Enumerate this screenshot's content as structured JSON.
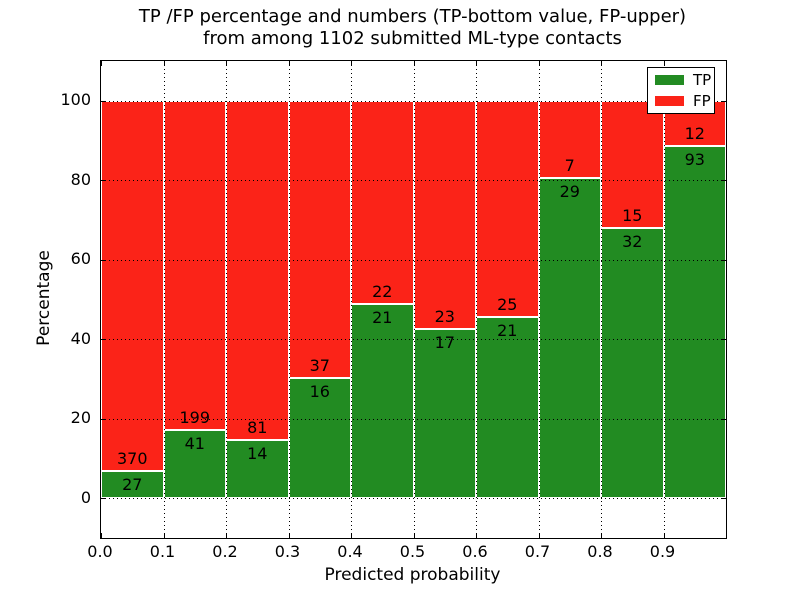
{
  "chart_data": {
    "type": "bar",
    "stacked": true,
    "unit": "percent",
    "title": "TP /FP percentage and numbers (TP-bottom value, FP-upper)\nfrom among 1102 submitted ML-type contacts",
    "title_line1": "TP /FP percentage and numbers (TP-bottom value, FP-upper)",
    "title_line2": "from among 1102 submitted ML-type contacts",
    "xlabel": "Predicted probability",
    "ylabel": "Percentage",
    "total_contacts": 1102,
    "categories": [
      "0.0-0.1",
      "0.1-0.2",
      "0.2-0.3",
      "0.3-0.4",
      "0.4-0.5",
      "0.5-0.6",
      "0.6-0.7",
      "0.7-0.8",
      "0.8-0.9",
      "0.9-1.0"
    ],
    "bin_edges": [
      0.0,
      0.1,
      0.2,
      0.3,
      0.4,
      0.5,
      0.6,
      0.7,
      0.8,
      0.9,
      1.0
    ],
    "series": [
      {
        "name": "TP",
        "color": "#228b22",
        "counts": [
          27,
          41,
          14,
          16,
          21,
          17,
          21,
          29,
          32,
          93
        ]
      },
      {
        "name": "FP",
        "color": "#fb2318",
        "counts": [
          370,
          199,
          81,
          37,
          22,
          23,
          25,
          7,
          15,
          12
        ]
      }
    ],
    "tp_percent": [
      6.8,
      17.1,
      14.7,
      30.2,
      48.8,
      42.5,
      45.7,
      80.6,
      68.1,
      88.6
    ],
    "x_tick_labels": [
      "0.0",
      "0.1",
      "0.2",
      "0.3",
      "0.4",
      "0.5",
      "0.6",
      "0.7",
      "0.8",
      "0.9"
    ],
    "y_tick_values": [
      0,
      20,
      40,
      60,
      80,
      100
    ],
    "y_tick_labels": [
      "0",
      "20",
      "40",
      "60",
      "80",
      "100"
    ],
    "xlim": [
      0.0,
      1.0
    ],
    "ylim": [
      -10,
      110
    ],
    "grid": "dotted",
    "legend": {
      "position": "upper right",
      "entries": [
        {
          "label": "TP",
          "color": "#228b22"
        },
        {
          "label": "FP",
          "color": "#fb2318"
        }
      ]
    }
  }
}
